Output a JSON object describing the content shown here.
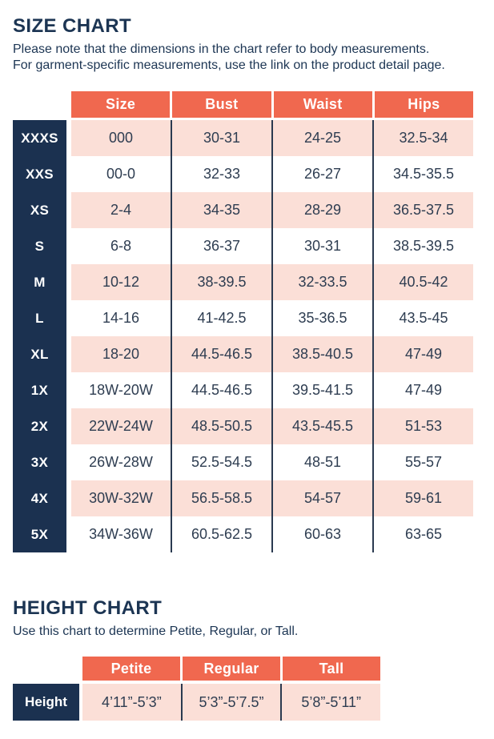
{
  "colors": {
    "navy": "#1B3150",
    "coral": "#F0684F",
    "pink": "#FBDFD7",
    "heading": "#1C3553",
    "cell_text": "#2E3D51",
    "divider": "#2A3A50"
  },
  "size_chart": {
    "title": "SIZE CHART",
    "description": [
      "Please note that the dimensions in the chart refer to body measurements.",
      "For garment-specific measurements, use the link on the product detail page."
    ],
    "columns": [
      "Size",
      "Bust",
      "Waist",
      "Hips"
    ],
    "rows": [
      {
        "label": "XXXS",
        "cells": [
          "000",
          "30-31",
          "24-25",
          "32.5-34"
        ]
      },
      {
        "label": "XXS",
        "cells": [
          "00-0",
          "32-33",
          "26-27",
          "34.5-35.5"
        ]
      },
      {
        "label": "XS",
        "cells": [
          "2-4",
          "34-35",
          "28-29",
          "36.5-37.5"
        ]
      },
      {
        "label": "S",
        "cells": [
          "6-8",
          "36-37",
          "30-31",
          "38.5-39.5"
        ]
      },
      {
        "label": "M",
        "cells": [
          "10-12",
          "38-39.5",
          "32-33.5",
          "40.5-42"
        ]
      },
      {
        "label": "L",
        "cells": [
          "14-16",
          "41-42.5",
          "35-36.5",
          "43.5-45"
        ]
      },
      {
        "label": "XL",
        "cells": [
          "18-20",
          "44.5-46.5",
          "38.5-40.5",
          "47-49"
        ]
      },
      {
        "label": "1X",
        "cells": [
          "18W-20W",
          "44.5-46.5",
          "39.5-41.5",
          "47-49"
        ]
      },
      {
        "label": "2X",
        "cells": [
          "22W-24W",
          "48.5-50.5",
          "43.5-45.5",
          "51-53"
        ]
      },
      {
        "label": "3X",
        "cells": [
          "26W-28W",
          "52.5-54.5",
          "48-51",
          "55-57"
        ]
      },
      {
        "label": "4X",
        "cells": [
          "30W-32W",
          "56.5-58.5",
          "54-57",
          "59-61"
        ]
      },
      {
        "label": "5X",
        "cells": [
          "34W-36W",
          "60.5-62.5",
          "60-63",
          "63-65"
        ]
      }
    ]
  },
  "height_chart": {
    "title": "HEIGHT CHART",
    "description": "Use this chart to determine Petite, Regular, or Tall.",
    "columns": [
      "Petite",
      "Regular",
      "Tall"
    ],
    "row_label": "Height",
    "cells": [
      "4’11”-5’3”",
      "5’3”-5’7.5”",
      "5’8”-5’11”"
    ]
  }
}
